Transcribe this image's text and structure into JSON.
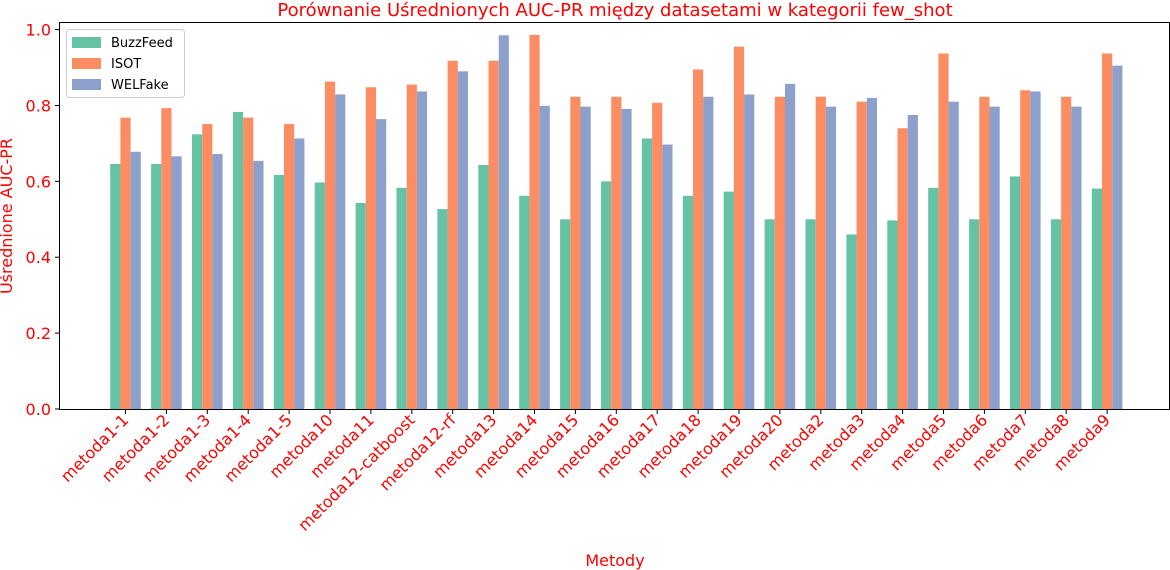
{
  "chart_data": {
    "type": "bar",
    "title": "Porównanie Uśrednionych AUC-PR między datasetami w kategorii few_shot",
    "xlabel": "Metody",
    "ylabel": "Uśrednione AUC-PR",
    "ylim": [
      0,
      1.02
    ],
    "yticks": [
      "0.0",
      "0.2",
      "0.4",
      "0.6",
      "0.8",
      "1.0"
    ],
    "grid": false,
    "legend_position": "top-left",
    "categories": [
      "metoda1-1",
      "metoda1-2",
      "metoda1-3",
      "metoda1-4",
      "metoda1-5",
      "metoda10",
      "metoda11",
      "metoda12-catboost",
      "metoda12-rf",
      "metoda13",
      "metoda14",
      "metoda15",
      "metoda16",
      "metoda17",
      "metoda18",
      "metoda19",
      "metoda20",
      "metoda2",
      "metoda3",
      "metoda4",
      "metoda5",
      "metoda6",
      "metoda7",
      "metoda8",
      "metoda9"
    ],
    "series": [
      {
        "name": "BuzzFeed",
        "color": "#66c2a5",
        "values": [
          0.646,
          0.646,
          0.724,
          0.783,
          0.617,
          0.597,
          0.543,
          0.583,
          0.527,
          0.643,
          0.562,
          0.5,
          0.6,
          0.713,
          0.562,
          0.573,
          0.5,
          0.5,
          0.46,
          0.497,
          0.583,
          0.5,
          0.613,
          0.5,
          0.581
        ]
      },
      {
        "name": "ISOT",
        "color": "#fc8d62",
        "values": [
          0.768,
          0.793,
          0.751,
          0.768,
          0.751,
          0.863,
          0.848,
          0.855,
          0.918,
          0.918,
          0.986,
          0.823,
          0.823,
          0.807,
          0.895,
          0.955,
          0.823,
          0.823,
          0.81,
          0.74,
          0.937,
          0.823,
          0.84,
          0.823,
          0.937
        ]
      },
      {
        "name": "WELFake",
        "color": "#8da0cb",
        "values": [
          0.678,
          0.666,
          0.672,
          0.654,
          0.713,
          0.829,
          0.764,
          0.837,
          0.89,
          0.985,
          0.799,
          0.797,
          0.791,
          0.697,
          0.823,
          0.829,
          0.857,
          0.797,
          0.82,
          0.775,
          0.81,
          0.797,
          0.837,
          0.797,
          0.905
        ]
      }
    ]
  }
}
